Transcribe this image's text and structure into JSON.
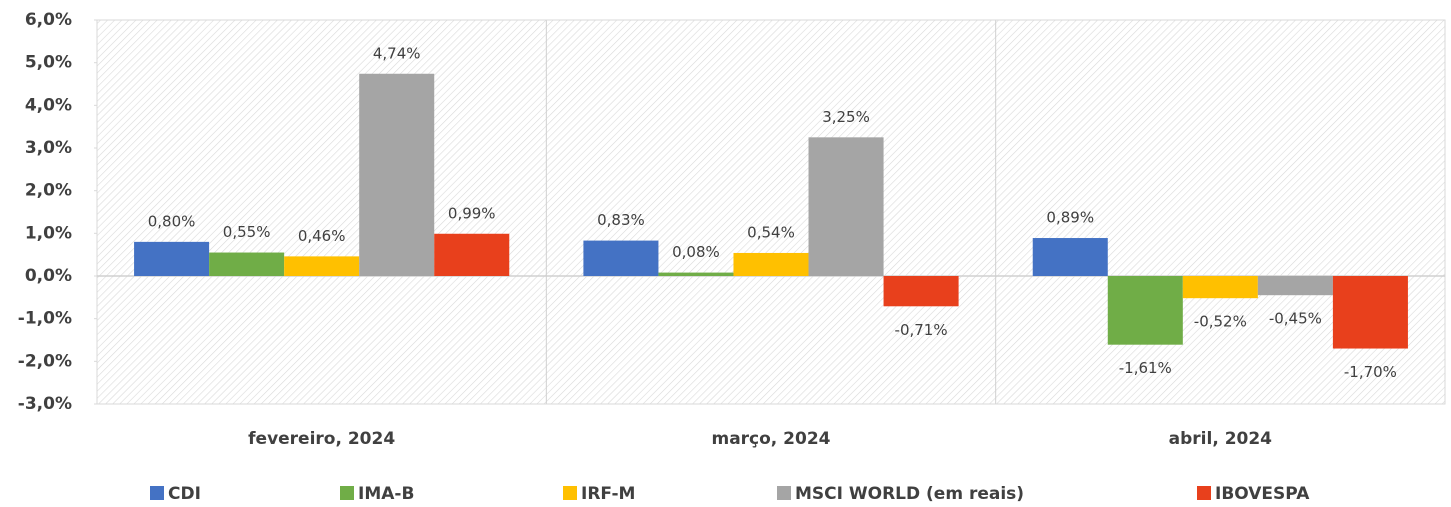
{
  "chart_data": {
    "type": "bar",
    "categories": [
      "fevereiro, 2024",
      "março, 2024",
      "abril, 2024"
    ],
    "series": [
      {
        "name": "CDI",
        "color": "#4472c4",
        "values": [
          0.8,
          0.83,
          0.89
        ],
        "value_labels": [
          "0,80%",
          "0,83%",
          "0,89%"
        ]
      },
      {
        "name": "IMA-B",
        "color": "#70ad47",
        "values": [
          0.55,
          0.08,
          -1.61
        ],
        "value_labels": [
          "0,55%",
          "0,08%",
          "-1,61%"
        ]
      },
      {
        "name": "IRF-M",
        "color": "#ffc000",
        "values": [
          0.46,
          0.54,
          -0.52
        ],
        "value_labels": [
          "0,46%",
          "0,54%",
          "-0,52%"
        ]
      },
      {
        "name": "MSCI WORLD (em reais)",
        "color": "#a5a5a5",
        "values": [
          4.74,
          3.25,
          -0.45
        ],
        "value_labels": [
          "4,74%",
          "3,25%",
          "-0,45%"
        ]
      },
      {
        "name": "IBOVESPA",
        "color": "#e8401c",
        "values": [
          0.99,
          -0.71,
          -1.7
        ],
        "value_labels": [
          "0,99%",
          "-0,71%",
          "-1,70%"
        ]
      }
    ],
    "ylim": [
      -3,
      6
    ],
    "yticks": [
      {
        "value": -3,
        "label": "-3,0%"
      },
      {
        "value": -2,
        "label": "-2,0%"
      },
      {
        "value": -1,
        "label": "-1,0%"
      },
      {
        "value": 0,
        "label": "0,0%"
      },
      {
        "value": 1,
        "label": "1,0%"
      },
      {
        "value": 2,
        "label": "2,0%"
      },
      {
        "value": 3,
        "label": "3,0%"
      },
      {
        "value": 4,
        "label": "4,0%"
      },
      {
        "value": 5,
        "label": "5,0%"
      },
      {
        "value": 6,
        "label": "6,0%"
      }
    ],
    "legend": "bottom"
  }
}
